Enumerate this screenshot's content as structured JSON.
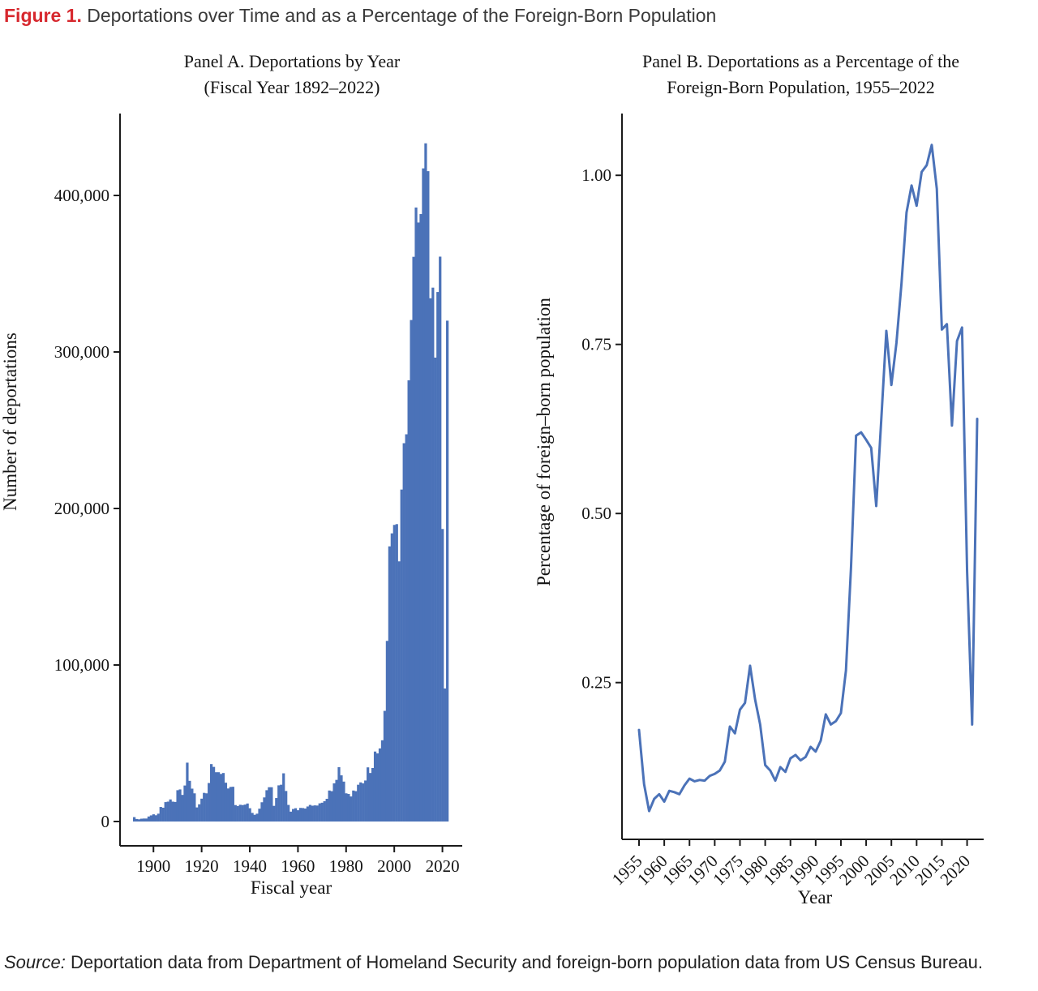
{
  "figure": {
    "label": "Figure 1.",
    "title": "Deportations over Time and as a Percentage of the Foreign-Born Population"
  },
  "source": {
    "label": "Source:",
    "text": "Deportation data from Department of Homeland Security and foreign-born population data from US Census Bureau."
  },
  "colors": {
    "series_blue": "#4b72b8",
    "accent_red": "#d7282e",
    "axis_black": "#1a1a1a",
    "text_dark": "#3a3a3a"
  },
  "chart_data": [
    {
      "type": "bar",
      "panel": "A",
      "title_lines": [
        "Panel A. Deportations by Year",
        "(Fiscal Year 1892–2022)"
      ],
      "xlabel": "Fiscal year",
      "ylabel": "Number of deportations",
      "x_start_year": 1892,
      "x_end_year": 2022,
      "x_ticks": [
        1900,
        1920,
        1940,
        1960,
        1980,
        2000,
        2020
      ],
      "y_ticks": [
        0,
        100000,
        200000,
        300000,
        400000
      ],
      "ylim": [
        0,
        452000
      ],
      "grid": false,
      "bar_color": "#4b72b8",
      "values": [
        2800,
        1600,
        1400,
        1800,
        1900,
        1900,
        3200,
        3900,
        4600,
        4000,
        5000,
        9300,
        8800,
        12400,
        12700,
        14100,
        12700,
        12500,
        20000,
        20500,
        17000,
        23000,
        37600,
        26000,
        21000,
        18000,
        9000,
        11000,
        14600,
        18300,
        18000,
        24600,
        36700,
        34900,
        31500,
        31500,
        30400,
        31000,
        24800,
        21100,
        22100,
        22200,
        10500,
        9900,
        10700,
        10500,
        10800,
        11500,
        8500,
        5500,
        4300,
        5000,
        8200,
        12300,
        15400,
        20000,
        21900,
        21900,
        10000,
        15000,
        23100,
        23500,
        30800,
        19500,
        10600,
        6300,
        8000,
        8500,
        7200,
        8700,
        8600,
        8300,
        9600,
        10600,
        10100,
        10300,
        10200,
        11600,
        12000,
        13000,
        14500,
        19800,
        19400,
        24400,
        26600,
        34700,
        29500,
        25500,
        18000,
        17600,
        16000,
        19800,
        19400,
        23500,
        25000,
        24400,
        26200,
        34600,
        31000,
        34200,
        44700,
        43500,
        46700,
        51900,
        70700,
        115400,
        175800,
        184100,
        189500,
        190000,
        166200,
        212100,
        241700,
        247400,
        281900,
        320400,
        360800,
        392300,
        382700,
        388100,
        417300,
        433300,
        415500,
        334300,
        341100,
        296400,
        338300,
        360900,
        186900,
        85000,
        320000
      ]
    },
    {
      "type": "line",
      "panel": "B",
      "title_lines": [
        "Panel B. Deportations as a Percentage of the",
        "Foreign-Born Population, 1955–2022"
      ],
      "xlabel": "Year",
      "ylabel": "Percentage of foreign–born population",
      "x_start_year": 1955,
      "x_end_year": 2022,
      "x_ticks": [
        1955,
        1960,
        1965,
        1970,
        1975,
        1980,
        1985,
        1990,
        1995,
        2000,
        2005,
        2010,
        2015,
        2020
      ],
      "y_ticks": [
        0.25,
        0.5,
        0.75,
        1.0
      ],
      "ylim": [
        0.02,
        1.09
      ],
      "grid": false,
      "line_color": "#4b72b8",
      "values": [
        0.18,
        0.1,
        0.06,
        0.078,
        0.085,
        0.074,
        0.09,
        0.088,
        0.085,
        0.098,
        0.108,
        0.104,
        0.106,
        0.105,
        0.112,
        0.115,
        0.12,
        0.133,
        0.185,
        0.175,
        0.21,
        0.22,
        0.275,
        0.225,
        0.188,
        0.128,
        0.12,
        0.105,
        0.125,
        0.118,
        0.138,
        0.143,
        0.135,
        0.14,
        0.155,
        0.148,
        0.164,
        0.203,
        0.188,
        0.193,
        0.205,
        0.268,
        0.42,
        0.615,
        0.62,
        0.609,
        0.597,
        0.511,
        0.639,
        0.77,
        0.69,
        0.752,
        0.84,
        0.945,
        0.985,
        0.955,
        1.005,
        1.015,
        1.045,
        0.98,
        0.772,
        0.78,
        0.63,
        0.755,
        0.775,
        0.415,
        0.188,
        0.64
      ]
    }
  ]
}
